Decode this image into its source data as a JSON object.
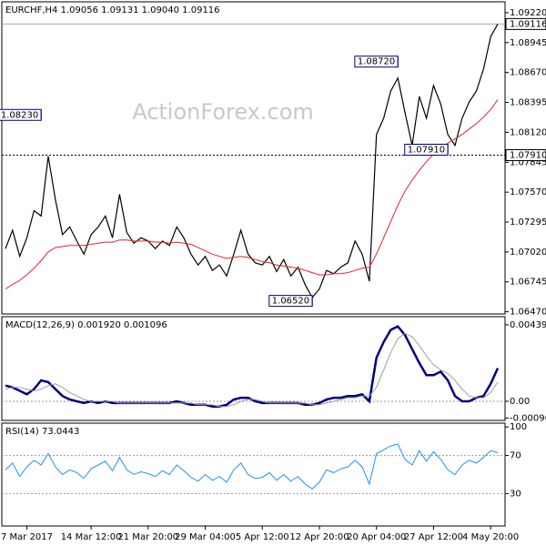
{
  "watermark": "ActionForex.com",
  "chart_data": [
    {
      "type": "line",
      "title": "EURCHF,H4 1.09056 1.09131 1.09040 1.09116",
      "ylim": [
        1.0645,
        1.0932
      ],
      "yticks": [
        {
          "value": 1.0922,
          "label": "1.09220"
        },
        {
          "value": 1.08945,
          "label": "1.08945"
        },
        {
          "value": 1.0867,
          "label": "1.08670"
        },
        {
          "value": 1.08395,
          "label": "1.08395"
        },
        {
          "value": 1.0812,
          "label": "1.08120"
        },
        {
          "value": 1.07845,
          "label": "1.07845"
        },
        {
          "value": 1.0757,
          "label": "1.07570"
        },
        {
          "value": 1.07295,
          "label": "1.07295"
        },
        {
          "value": 1.0702,
          "label": "1.07020"
        },
        {
          "value": 1.06745,
          "label": "1.06745"
        },
        {
          "value": 1.0647,
          "label": "1.06470"
        }
      ],
      "grid": false,
      "series": [
        {
          "color": "#000000",
          "values": [
            1.0705,
            1.0722,
            1.0698,
            1.0715,
            1.074,
            1.0735,
            1.079,
            1.075,
            1.0718,
            1.0725,
            1.0712,
            1.07,
            1.0718,
            1.0725,
            1.0735,
            1.0715,
            1.0755,
            1.072,
            1.071,
            1.0715,
            1.0712,
            1.0705,
            1.0712,
            1.0708,
            1.0725,
            1.0715,
            1.07,
            1.069,
            1.0698,
            1.0685,
            1.069,
            1.068,
            1.07,
            1.0722,
            1.07,
            1.0692,
            1.069,
            1.0698,
            1.0684,
            1.0695,
            1.068,
            1.0688,
            1.0672,
            1.066,
            1.0668,
            1.0685,
            1.0682,
            1.0688,
            1.0692,
            1.0712,
            1.07,
            1.0675,
            1.081,
            1.0825,
            1.085,
            1.0862,
            1.083,
            1.08,
            1.0845,
            1.0825,
            1.0855,
            1.0838,
            1.081,
            1.08,
            1.0825,
            1.084,
            1.085,
            1.087,
            1.09,
            1.09116
          ]
        },
        {
          "color": "#e8212b",
          "values": [
            1.0668,
            1.0672,
            1.0676,
            1.0681,
            1.0687,
            1.0694,
            1.0702,
            1.0706,
            1.0707,
            1.0708,
            1.0708,
            1.0708,
            1.0709,
            1.071,
            1.0711,
            1.0711,
            1.0713,
            1.0713,
            1.0712,
            1.0712,
            1.0712,
            1.0711,
            1.0711,
            1.071,
            1.0711,
            1.071,
            1.0709,
            1.0706,
            1.0703,
            1.07,
            1.0698,
            1.0696,
            1.0697,
            1.0698,
            1.0697,
            1.0695,
            1.0693,
            1.0692,
            1.069,
            1.0689,
            1.0688,
            1.0687,
            1.0685,
            1.0683,
            1.0681,
            1.0681,
            1.0682,
            1.0682,
            1.0683,
            1.0685,
            1.0687,
            1.0688,
            1.07,
            1.0715,
            1.073,
            1.0745,
            1.0758,
            1.0768,
            1.0777,
            1.0785,
            1.0792,
            1.0798,
            1.0802,
            1.0806,
            1.081,
            1.0815,
            1.082,
            1.0826,
            1.0833,
            1.0842
          ]
        }
      ],
      "price_lines": [
        {
          "value": 1.09116,
          "label": "1.09116",
          "style": "solid"
        },
        {
          "value": 1.0791,
          "label": "1.07910",
          "style": "dotted"
        }
      ],
      "annotations": [
        {
          "index": 5,
          "value": 1.0823,
          "label": "1.08230"
        },
        {
          "index": 55,
          "value": 1.0872,
          "label": "1.08720"
        },
        {
          "index": 62,
          "value": 1.0791,
          "label": "1.07910"
        },
        {
          "index": 43,
          "value": 1.0652,
          "label": "1.06520"
        }
      ]
    },
    {
      "type": "line",
      "title": "MACD(12,26,9) 0.001920 0.001096",
      "ylim": [
        -0.0011,
        0.00486
      ],
      "yticks": [
        0.004391,
        {
          "value": 0,
          "label": "0.00"
        },
        -0.000961
      ],
      "grid": true,
      "grid_values": [
        0
      ],
      "series": [
        {
          "color": "#000080",
          "values": [
            0.0009,
            0.0008,
            0.0006,
            0.0004,
            0.0007,
            0.0012,
            0.0011,
            0.0007,
            0.0003,
            0.0001,
            0,
            -0.0001,
            0,
            -0.0001,
            0,
            -0.0001,
            -0.0001,
            -0.0001,
            -0.0001,
            -0.0001,
            -0.0001,
            -0.0001,
            -0.0001,
            -0.0001,
            0,
            -0.0001,
            -0.0002,
            -0.0002,
            -0.0002,
            -0.0003,
            -0.0003,
            -0.0002,
            0.0001,
            0.0002,
            0.0002,
            0,
            -0.0001,
            -0.0001,
            -0.0001,
            -0.0001,
            -0.0001,
            -0.0001,
            -0.0002,
            -0.0002,
            -0.0001,
            0.0001,
            0.0002,
            0.0002,
            0.0003,
            0.0003,
            0.0004,
            0,
            0.0025,
            0.0034,
            0.0041,
            0.0043,
            0.0038,
            0.003,
            0.0022,
            0.0015,
            0.0015,
            0.0017,
            0.0012,
            0.0003,
            0,
            0,
            0.0002,
            0.0003,
            0.001,
            0.0019
          ]
        },
        {
          "color": "#a0a0a0",
          "values": [
            0.0007,
            0.0008,
            0.0008,
            0.0007,
            0.0006,
            0.0007,
            0.0009,
            0.001,
            0.0008,
            0.0005,
            0.0003,
            0.0001,
            0,
            0,
            0,
            0,
            -0.0001,
            -0.0001,
            -0.0001,
            -0.0001,
            -0.0001,
            -0.0001,
            -0.0001,
            -0.0001,
            -0.0001,
            -0.0001,
            -0.0001,
            -0.0002,
            -0.0002,
            -0.0002,
            -0.0003,
            -0.0003,
            -0.0002,
            0,
            0.0001,
            0.0001,
            0,
            -0.0001,
            -0.0001,
            -0.0001,
            -0.0001,
            -0.0001,
            -0.0001,
            -0.0002,
            -0.0002,
            -0.0001,
            0,
            0.0001,
            0.0002,
            0.0002,
            0.0003,
            0.0003,
            0.0008,
            0.0018,
            0.0028,
            0.0036,
            0.0039,
            0.0037,
            0.0032,
            0.0026,
            0.0021,
            0.0018,
            0.0016,
            0.0012,
            0.0007,
            0.0003,
            0.0002,
            0.0002,
            0.0005,
            0.0011
          ]
        }
      ]
    },
    {
      "type": "line",
      "title": "RSI(14) 73.0443",
      "ylim": [
        -4,
        104
      ],
      "yticks": [
        100,
        70,
        30
      ],
      "grid": true,
      "grid_values": [
        70,
        30
      ],
      "series": [
        {
          "color": "#1e90ff",
          "values": [
            55,
            62,
            48,
            58,
            65,
            60,
            72,
            58,
            50,
            55,
            52,
            46,
            56,
            60,
            64,
            54,
            68,
            55,
            50,
            53,
            51,
            48,
            54,
            50,
            60,
            54,
            47,
            43,
            50,
            44,
            48,
            42,
            55,
            62,
            50,
            46,
            47,
            52,
            44,
            50,
            43,
            48,
            40,
            35,
            42,
            55,
            52,
            56,
            58,
            65,
            58,
            40,
            72,
            76,
            80,
            82,
            66,
            60,
            75,
            64,
            74,
            66,
            55,
            50,
            60,
            65,
            62,
            68,
            75,
            73.0443
          ]
        }
      ],
      "xticks": [
        {
          "value": 3,
          "label": "7 Mar 2017"
        },
        {
          "value": 12,
          "label": "14 Mar 12:00"
        },
        {
          "value": 20,
          "label": "21 Mar 20:00"
        },
        {
          "value": 28,
          "label": "29 Mar 04:00"
        },
        {
          "value": 36,
          "label": "5 Apr 12:00"
        },
        {
          "value": 44,
          "label": "12 Apr 20:00"
        },
        {
          "value": 52,
          "label": "20 Apr 04:00"
        },
        {
          "value": 60,
          "label": "27 Apr 12:00"
        },
        {
          "value": 68,
          "label": "4 May 20:00"
        }
      ]
    }
  ]
}
